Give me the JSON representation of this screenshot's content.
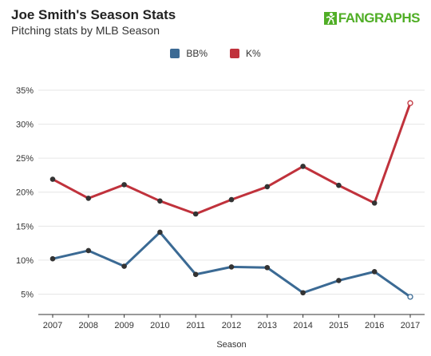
{
  "header": {
    "title": "Joe Smith's Season Stats",
    "subtitle": "Pitching stats by MLB Season",
    "logo_text_a": "FAN",
    "logo_text_b": "GRAPHS"
  },
  "chart_data": {
    "type": "line",
    "title": "Joe Smith's Season Stats",
    "subtitle": "Pitching stats by MLB Season",
    "xlabel": "Season",
    "ylabel": "",
    "x": [
      "2007",
      "2008",
      "2009",
      "2010",
      "2011",
      "2012",
      "2013",
      "2014",
      "2015",
      "2016",
      "2017"
    ],
    "ylim": [
      2,
      37
    ],
    "yticks": [
      5,
      10,
      15,
      20,
      25,
      30,
      35
    ],
    "ytick_labels": [
      "5%",
      "10%",
      "15%",
      "20%",
      "25%",
      "30%",
      "35%"
    ],
    "grid": true,
    "legend_position": "top-center",
    "series": [
      {
        "name": "BB%",
        "color": "#3b6a94",
        "values": [
          10.2,
          11.4,
          9.1,
          14.1,
          7.9,
          9.0,
          8.9,
          5.2,
          7.0,
          8.3,
          4.6
        ]
      },
      {
        "name": "K%",
        "color": "#c0323c",
        "values": [
          21.9,
          19.1,
          21.1,
          18.7,
          16.8,
          18.9,
          20.8,
          23.8,
          21.0,
          18.4,
          33.1
        ]
      }
    ],
    "last_point_hollow": true
  },
  "colors": {
    "grid": "#e6e6e6",
    "axis": "#333333",
    "logo": "#50ae26"
  }
}
